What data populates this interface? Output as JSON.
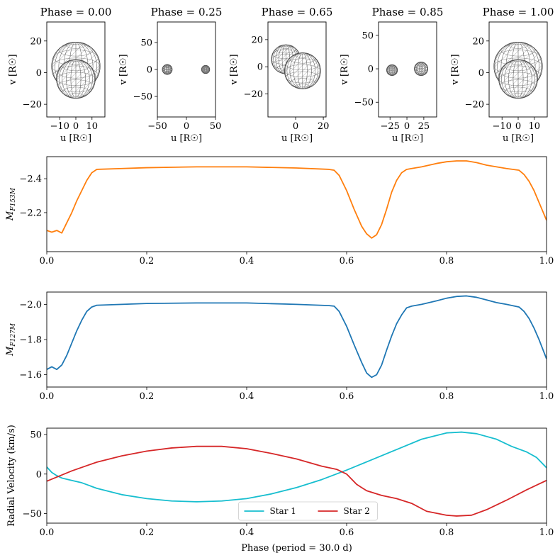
{
  "chart_data": [
    {
      "type": "scatter",
      "panel": "orbit-view",
      "title": "Phase = 0.00",
      "xlabel": "u [R☉]",
      "ylabel": "v [R☉]",
      "xlim": [
        -18,
        18
      ],
      "ylim": [
        -28,
        32
      ],
      "xticks": [
        -10,
        0,
        10
      ],
      "xtick_labels": [
        "−10",
        "0",
        "10"
      ],
      "yticks": [
        -20,
        0,
        20
      ],
      "ytick_labels": [
        "−20",
        "0",
        "20"
      ],
      "stars": [
        {
          "u": 0,
          "v": 4,
          "r": 15
        },
        {
          "u": 0,
          "v": -4,
          "r": 12
        }
      ]
    },
    {
      "type": "scatter",
      "panel": "orbit-view",
      "title": "Phase = 0.25",
      "xlabel": "u [R☉]",
      "ylabel": "v [R☉]",
      "xlim": [
        -50,
        50
      ],
      "ylim": [
        -88,
        88
      ],
      "xticks": [
        -50,
        0,
        50
      ],
      "xtick_labels": [
        "−50",
        "0",
        "50"
      ],
      "yticks": [
        -50,
        0,
        50
      ],
      "ytick_labels": [
        "−50",
        "0",
        "50"
      ],
      "stars": [
        {
          "u": -33,
          "v": 0,
          "r": 8.5
        },
        {
          "u": 33,
          "v": 0,
          "r": 7
        }
      ]
    },
    {
      "type": "scatter",
      "panel": "orbit-view",
      "title": "Phase = 0.65",
      "xlabel": "u [R☉]",
      "ylabel": "v [R☉]",
      "xlim": [
        -20,
        22
      ],
      "ylim": [
        -37,
        33
      ],
      "xticks": [
        0,
        20
      ],
      "xtick_labels": [
        "0",
        "20"
      ],
      "yticks": [
        -20,
        0,
        20
      ],
      "ytick_labels": [
        "−20",
        "0",
        "20"
      ],
      "stars": [
        {
          "u": -7,
          "v": 5.5,
          "r": 10.5
        },
        {
          "u": 5,
          "v": -3,
          "r": 13
        }
      ]
    },
    {
      "type": "scatter",
      "panel": "orbit-view",
      "title": "Phase = 0.85",
      "xlabel": "u [R☉]",
      "ylabel": "v [R☉]",
      "xlim": [
        -42,
        44
      ],
      "ylim": [
        -72,
        70
      ],
      "xticks": [
        -25,
        0,
        25
      ],
      "xtick_labels": [
        "−25",
        "0",
        "25"
      ],
      "yticks": [
        -50,
        0,
        50
      ],
      "ytick_labels": [
        "−50",
        "0",
        "50"
      ],
      "stars": [
        {
          "u": -22,
          "v": -2,
          "r": 8
        },
        {
          "u": 21,
          "v": 0,
          "r": 10
        }
      ]
    },
    {
      "type": "scatter",
      "panel": "orbit-view",
      "title": "Phase = 1.00",
      "xlabel": "u [R☉]",
      "ylabel": "v [R☉]",
      "xlim": [
        -18,
        18
      ],
      "ylim": [
        -28,
        32
      ],
      "xticks": [
        -10,
        0,
        10
      ],
      "xtick_labels": [
        "−10",
        "0",
        "10"
      ],
      "yticks": [
        -20,
        0,
        20
      ],
      "ytick_labels": [
        "−20",
        "0",
        "20"
      ],
      "stars": [
        {
          "u": 0,
          "v": 4,
          "r": 15
        },
        {
          "u": 0,
          "v": -4,
          "r": 12
        }
      ]
    },
    {
      "type": "line",
      "panel": "light-curve-F153M",
      "ylabel": "M",
      "ylabel_sub": "F153M",
      "xlim": [
        0,
        1
      ],
      "ylim": [
        -1.97,
        -2.53
      ],
      "y_inverted": true,
      "xticks": [
        0,
        0.2,
        0.4,
        0.6,
        0.8,
        1
      ],
      "xtick_labels": [
        "0.0",
        "0.2",
        "0.4",
        "0.6",
        "0.8",
        "1.0"
      ],
      "yticks": [
        -2.4,
        -2.2
      ],
      "ytick_labels": [
        "−2.4",
        "−2.2"
      ],
      "color": "#ff7f0e",
      "x": [
        0.0,
        0.01,
        0.02,
        0.03,
        0.04,
        0.05,
        0.06,
        0.07,
        0.08,
        0.09,
        0.1,
        0.15,
        0.2,
        0.3,
        0.4,
        0.5,
        0.565,
        0.575,
        0.585,
        0.6,
        0.615,
        0.63,
        0.64,
        0.65,
        0.66,
        0.67,
        0.68,
        0.69,
        0.7,
        0.71,
        0.72,
        0.73,
        0.75,
        0.78,
        0.8,
        0.82,
        0.84,
        0.86,
        0.88,
        0.9,
        0.92,
        0.945,
        0.955,
        0.965,
        0.975,
        0.985,
        1.0
      ],
      "y": [
        -2.095,
        -2.085,
        -2.095,
        -2.08,
        -2.14,
        -2.2,
        -2.27,
        -2.33,
        -2.39,
        -2.435,
        -2.455,
        -2.46,
        -2.465,
        -2.47,
        -2.47,
        -2.463,
        -2.455,
        -2.45,
        -2.42,
        -2.33,
        -2.22,
        -2.12,
        -2.075,
        -2.05,
        -2.07,
        -2.13,
        -2.22,
        -2.32,
        -2.39,
        -2.435,
        -2.455,
        -2.46,
        -2.47,
        -2.49,
        -2.5,
        -2.505,
        -2.505,
        -2.495,
        -2.48,
        -2.47,
        -2.46,
        -2.45,
        -2.425,
        -2.385,
        -2.33,
        -2.26,
        -2.155
      ]
    },
    {
      "type": "line",
      "panel": "light-curve-F127M",
      "ylabel": "M",
      "ylabel_sub": "F127M",
      "xlim": [
        0,
        1
      ],
      "ylim": [
        -1.53,
        -2.07
      ],
      "y_inverted": true,
      "xticks": [
        0,
        0.2,
        0.4,
        0.6,
        0.8,
        1
      ],
      "xtick_labels": [
        "0.0",
        "0.2",
        "0.4",
        "0.6",
        "0.8",
        "1.0"
      ],
      "yticks": [
        -2.0,
        -1.8,
        -1.6
      ],
      "ytick_labels": [
        "−2.0",
        "−1.8",
        "−1.6"
      ],
      "color": "#1f77b4",
      "x": [
        0.0,
        0.01,
        0.02,
        0.03,
        0.04,
        0.05,
        0.06,
        0.07,
        0.08,
        0.09,
        0.1,
        0.15,
        0.2,
        0.3,
        0.4,
        0.5,
        0.565,
        0.575,
        0.585,
        0.6,
        0.615,
        0.63,
        0.64,
        0.65,
        0.66,
        0.67,
        0.68,
        0.69,
        0.7,
        0.71,
        0.72,
        0.73,
        0.75,
        0.78,
        0.8,
        0.82,
        0.84,
        0.86,
        0.88,
        0.9,
        0.92,
        0.945,
        0.955,
        0.965,
        0.975,
        0.985,
        1.0
      ],
      "y": [
        -1.63,
        -1.645,
        -1.63,
        -1.655,
        -1.71,
        -1.78,
        -1.85,
        -1.91,
        -1.96,
        -1.985,
        -1.995,
        -2.0,
        -2.005,
        -2.008,
        -2.008,
        -2.0,
        -1.993,
        -1.99,
        -1.96,
        -1.875,
        -1.77,
        -1.67,
        -1.61,
        -1.585,
        -1.6,
        -1.655,
        -1.74,
        -1.82,
        -1.89,
        -1.94,
        -1.98,
        -1.99,
        -2.0,
        -2.02,
        -2.035,
        -2.045,
        -2.048,
        -2.04,
        -2.025,
        -2.01,
        -2.0,
        -1.985,
        -1.96,
        -1.92,
        -1.865,
        -1.8,
        -1.69
      ]
    },
    {
      "type": "line",
      "panel": "radial-velocity",
      "xlabel": "Phase (period = 30.0 d)",
      "ylabel": "Radial Velocity (km/s)",
      "xlim": [
        0,
        1
      ],
      "ylim": [
        -62,
        58
      ],
      "xticks": [
        0,
        0.2,
        0.4,
        0.6,
        0.8,
        1
      ],
      "xtick_labels": [
        "0.0",
        "0.2",
        "0.4",
        "0.6",
        "0.8",
        "1.0"
      ],
      "yticks": [
        -50,
        0,
        50
      ],
      "ytick_labels": [
        "−50",
        "0",
        "50"
      ],
      "legend_loc": "lower-center",
      "series": [
        {
          "name": "Star 1",
          "color": "#17becf",
          "x": [
            0.0,
            0.01,
            0.02,
            0.03,
            0.05,
            0.07,
            0.1,
            0.15,
            0.2,
            0.25,
            0.3,
            0.35,
            0.4,
            0.45,
            0.5,
            0.55,
            0.6,
            0.65,
            0.7,
            0.75,
            0.8,
            0.83,
            0.86,
            0.9,
            0.93,
            0.96,
            0.98,
            1.0
          ],
          "y": [
            9,
            2,
            -2,
            -5,
            -8,
            -11,
            -18,
            -26,
            -31,
            -34,
            -35,
            -34,
            -31,
            -25,
            -17,
            -7,
            5,
            18,
            31,
            44,
            52,
            53,
            51,
            44,
            35,
            28,
            21,
            8
          ]
        },
        {
          "name": "Star 2",
          "color": "#d62728",
          "x": [
            0.0,
            0.05,
            0.1,
            0.15,
            0.2,
            0.25,
            0.3,
            0.35,
            0.4,
            0.45,
            0.5,
            0.55,
            0.58,
            0.6,
            0.62,
            0.64,
            0.67,
            0.7,
            0.73,
            0.76,
            0.8,
            0.82,
            0.85,
            0.88,
            0.92,
            0.96,
            1.0
          ],
          "y": [
            -9,
            4,
            15,
            23,
            29,
            33,
            35,
            35,
            32,
            26,
            19,
            10,
            6,
            0,
            -13,
            -21,
            -27,
            -31,
            -37,
            -47,
            -52,
            -53,
            -52,
            -45,
            -33,
            -20,
            -8
          ]
        }
      ]
    }
  ]
}
